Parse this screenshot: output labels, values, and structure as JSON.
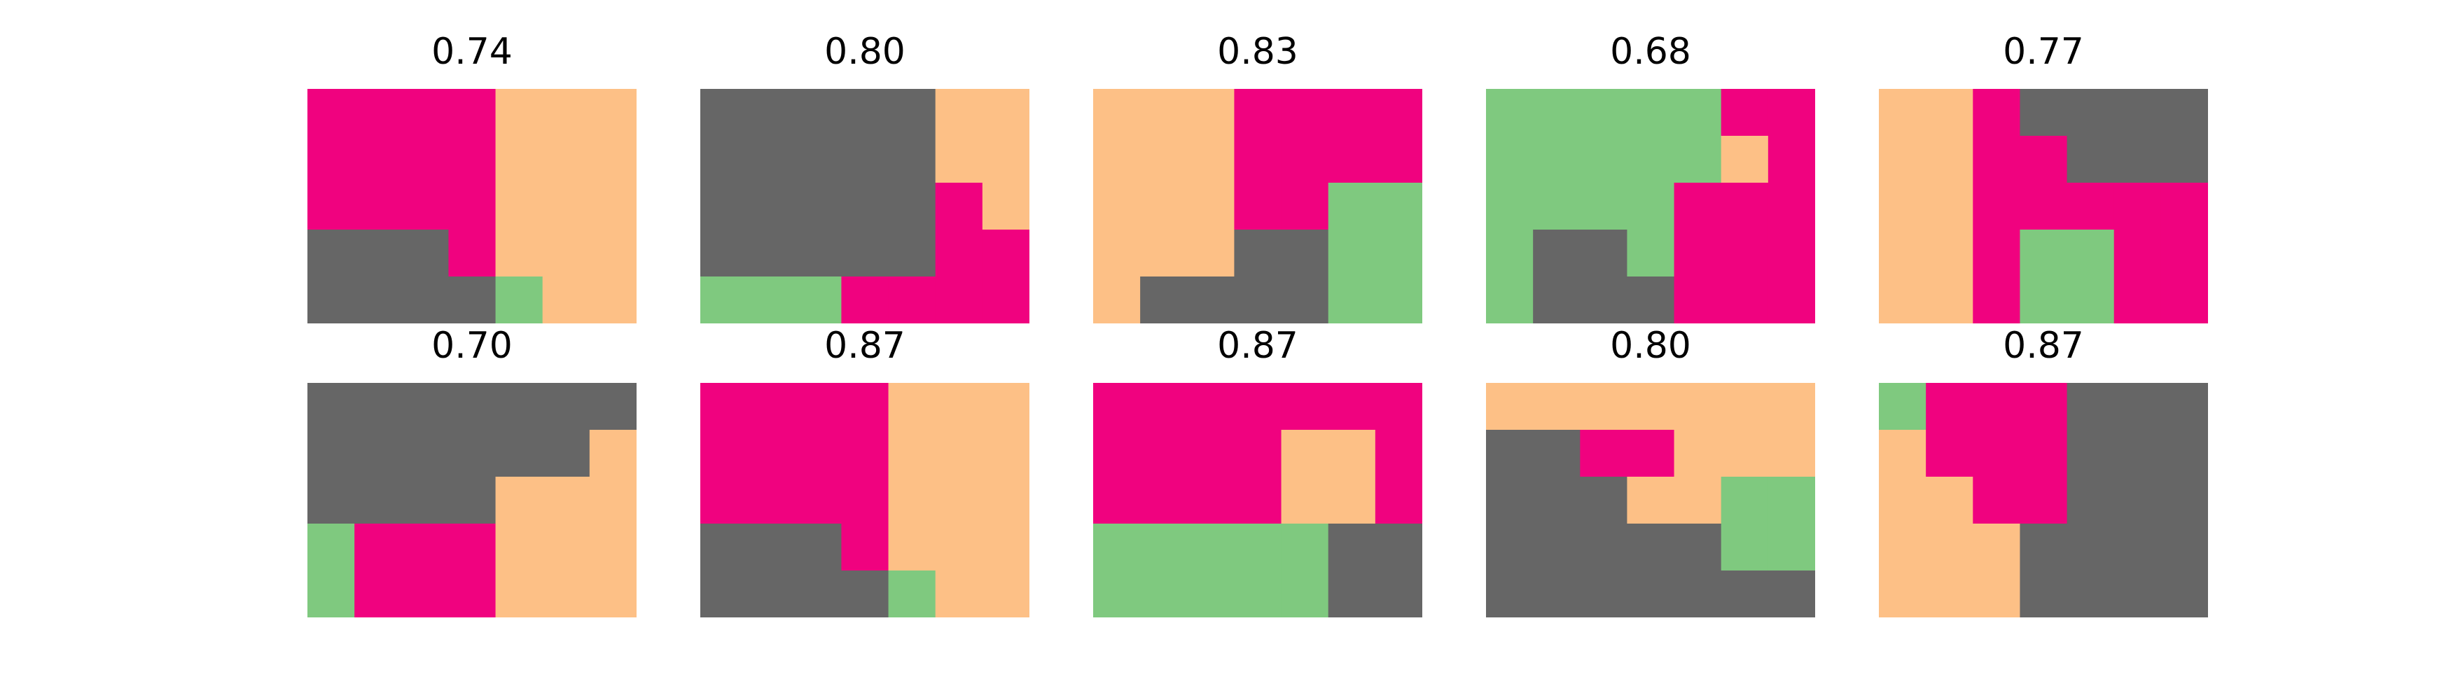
{
  "colors": {
    "P": "#f0027f",
    "O": "#fdc086",
    "G": "#666666",
    "L": "#7fc97f"
  },
  "panels": [
    {
      "title": "0.74",
      "grid": [
        "PPPPOOO",
        "PPPPOOO",
        "PPPPOOO",
        "GGGPOOO",
        "GGGGLOO"
      ]
    },
    {
      "title": "0.80",
      "grid": [
        "GGGGGOO",
        "GGGGGOO",
        "GGGGGPO",
        "GGGGGPP",
        "LLLPPPP"
      ]
    },
    {
      "title": "0.83",
      "grid": [
        "OOOPPPP",
        "OOOPPPP",
        "OOOPPLL",
        "OOOGGLL",
        "OGGGGLL"
      ]
    },
    {
      "title": "0.68",
      "grid": [
        "LLLLLPP",
        "LLLLLOP",
        "LLLLPPP",
        "LGGLPPP",
        "LGGGPPP"
      ]
    },
    {
      "title": "0.77",
      "grid": [
        "OOPGGGG",
        "OOPPGGG",
        "OOPPPPP",
        "OOPLLPP",
        "OOPLLPP"
      ]
    },
    {
      "title": "0.70",
      "grid": [
        "GGGGGGG",
        "GGGGGGO",
        "GGGGOOO",
        "LPPPOOO",
        "LPPPOOO"
      ]
    },
    {
      "title": "0.87",
      "grid": [
        "PPPPOOO",
        "PPPPOOO",
        "PPPPOOO",
        "GGGPOOO",
        "GGGGLOO"
      ]
    },
    {
      "title": "0.87",
      "grid": [
        "PPPPPPP",
        "PPPPOOP",
        "PPPPOOP",
        "LLLLLGG",
        "LLLLLGG"
      ]
    },
    {
      "title": "0.80",
      "grid": [
        "OOOOOOO",
        "GGPPOOO",
        "GGGOOLL",
        "GGGGGLL",
        "GGGGGGG"
      ]
    },
    {
      "title": "0.87",
      "grid": [
        "LPPPGGG",
        "OPPPGGG",
        "OOPPGGG",
        "OOOGGGG",
        "OOOGGGG"
      ]
    }
  ]
}
